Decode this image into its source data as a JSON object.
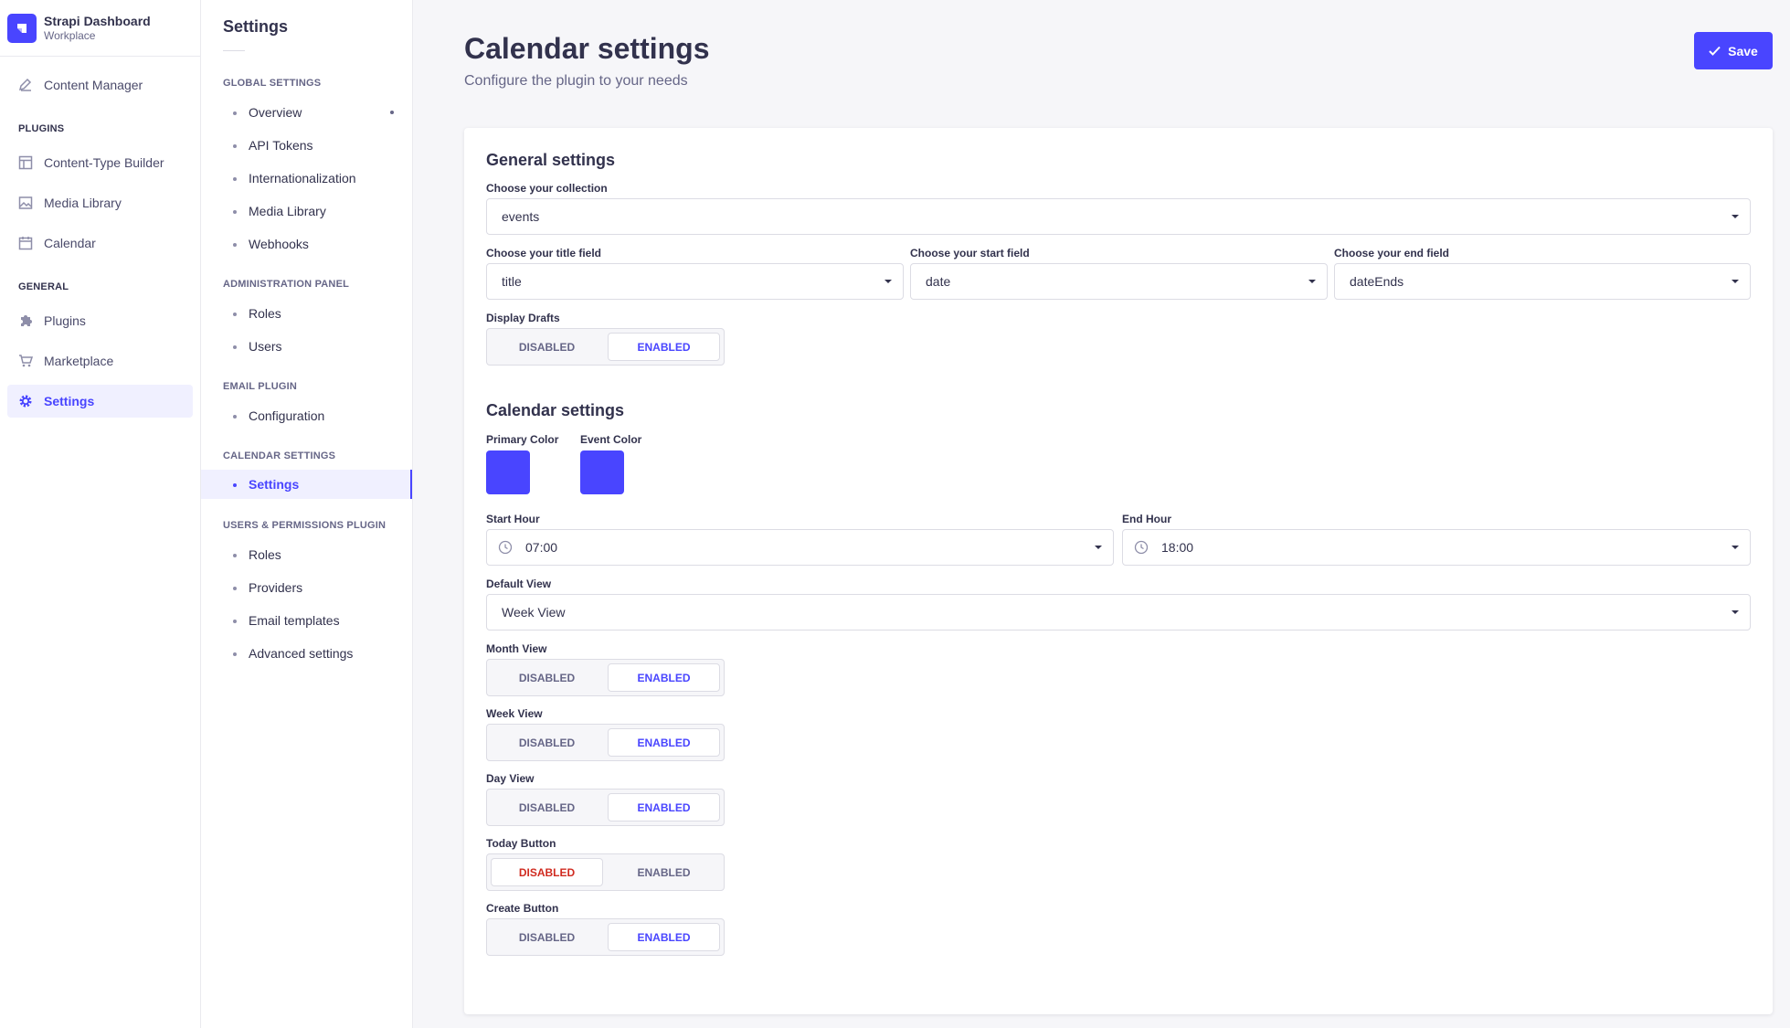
{
  "brand": {
    "title": "Strapi Dashboard",
    "subtitle": "Workplace"
  },
  "mainnav": {
    "content_manager": "Content Manager",
    "plugins_section": "PLUGINS",
    "content_type_builder": "Content-Type Builder",
    "media_library": "Media Library",
    "calendar": "Calendar",
    "general_section": "GENERAL",
    "plugins": "Plugins",
    "marketplace": "Marketplace",
    "settings": "Settings"
  },
  "subnav": {
    "title": "Settings",
    "global_section": "GLOBAL SETTINGS",
    "global_items": [
      "Overview",
      "API Tokens",
      "Internationalization",
      "Media Library",
      "Webhooks"
    ],
    "admin_section": "ADMINISTRATION PANEL",
    "admin_items": [
      "Roles",
      "Users"
    ],
    "email_section": "EMAIL PLUGIN",
    "email_items": [
      "Configuration"
    ],
    "calendar_section": "CALENDAR SETTINGS",
    "calendar_items": [
      "Settings"
    ],
    "users_section": "USERS & PERMISSIONS PLUGIN",
    "users_items": [
      "Roles",
      "Providers",
      "Email templates",
      "Advanced settings"
    ]
  },
  "header": {
    "title": "Calendar settings",
    "subtitle": "Configure the plugin to your needs",
    "save_label": "Save"
  },
  "general": {
    "heading": "General settings",
    "collection_label": "Choose your collection",
    "collection_value": "events",
    "title_field_label": "Choose your title field",
    "title_field_value": "title",
    "start_field_label": "Choose your start field",
    "start_field_value": "date",
    "end_field_label": "Choose your end field",
    "end_field_value": "dateEnds",
    "drafts_label": "Display Drafts",
    "drafts_value": "ENABLED"
  },
  "calendar": {
    "heading": "Calendar settings",
    "primary_color_label": "Primary Color",
    "primary_color": "#4945ff",
    "event_color_label": "Event Color",
    "event_color": "#4945ff",
    "start_hour_label": "Start Hour",
    "start_hour_value": "07:00",
    "end_hour_label": "End Hour",
    "end_hour_value": "18:00",
    "default_view_label": "Default View",
    "default_view_value": "Week View",
    "month_view_label": "Month View",
    "month_view_value": "ENABLED",
    "week_view_label": "Week View",
    "week_view_value": "ENABLED",
    "day_view_label": "Day View",
    "day_view_value": "ENABLED",
    "today_button_label": "Today Button",
    "today_button_value": "DISABLED",
    "create_button_label": "Create Button",
    "create_button_value": "ENABLED"
  },
  "toggle": {
    "disabled": "DISABLED",
    "enabled": "ENABLED"
  }
}
